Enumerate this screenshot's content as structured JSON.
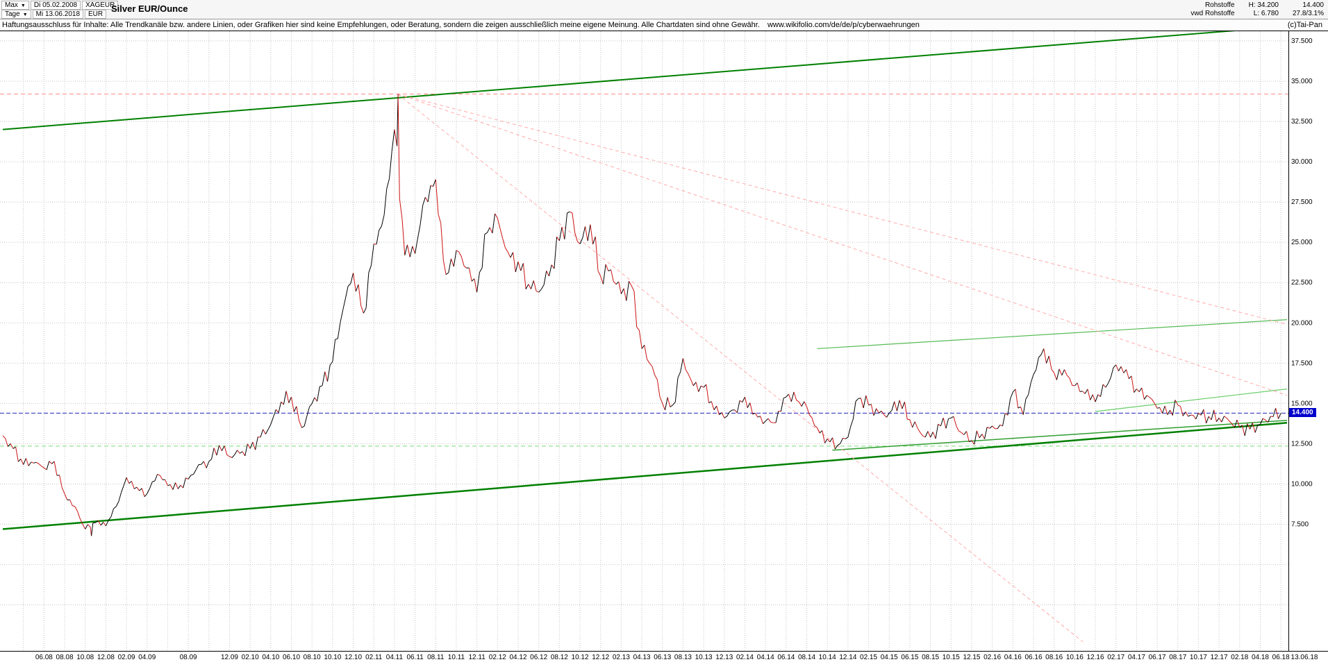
{
  "header": {
    "range_label": "Max",
    "start_date": "Di 05.02.2008",
    "symbol": "XAGEUR",
    "period_label": "Tage",
    "end_date": "Mi 13.06.2018",
    "currency": "EUR",
    "title": "Silver EUR/Ounce",
    "right": {
      "row1_label": "Rohstoffe",
      "row1_high": "H: 34.200",
      "row1_price": "14.400",
      "row2_label": "vwd Rohstoffe",
      "row2_low": "L: 6.780",
      "row2_change": "27.8/3.1%",
      "copyright": "(c)Tai-Pan"
    }
  },
  "disclaimer": {
    "text": "Haftungsausschluss für Inhalte: Alle Trendkanäle bzw. andere Linien, oder Grafiken hier sind keine Empfehlungen, oder Beratung, sondern die zeigen ausschließlich meine eigene Meinung. Alle Chartdaten sind ohne Gewähr.",
    "link": "www.wikifolio.com/de/de/p/cyberwaehrungen"
  },
  "chart_data": {
    "type": "candlestick",
    "title": "Silver EUR/Ounce",
    "instrument": "XAGEUR",
    "currency": "EUR",
    "period_high": 34.2,
    "period_low": 6.78,
    "last_price": 14.4,
    "last_price_label": "14.400",
    "x_range": [
      "2008-02",
      "2018-06-13"
    ],
    "x_end_label": "13.06.18",
    "ylim": [
      0,
      38.1
    ],
    "grid": true,
    "monthly": {
      "start": "2008-02",
      "closes": [
        13.0,
        12.2,
        11.2,
        11.3,
        11.0,
        11.4,
        9.4,
        8.6,
        7.2,
        7.6,
        7.4,
        8.6,
        10.4,
        9.8,
        9.4,
        10.6,
        9.9,
        9.7,
        10.3,
        11.2,
        11.4,
        12.4,
        11.7,
        11.9,
        12.2,
        12.9,
        13.7,
        15.1,
        15.4,
        13.5,
        15.0,
        16.1,
        17.6,
        20.8,
        23.1,
        20.6,
        24.9,
        26.7,
        32.0,
        24.2,
        24.3,
        27.8,
        28.9,
        23.0,
        24.5,
        23.4,
        21.9,
        25.6,
        26.5,
        24.4,
        23.8,
        22.4,
        21.9,
        22.9,
        25.1,
        26.9,
        24.9,
        26.1,
        22.9,
        23.3,
        21.8,
        22.3,
        18.4,
        17.3,
        15.0,
        14.9,
        17.8,
        16.1,
        16.0,
        14.6,
        14.1,
        14.6,
        15.4,
        14.4,
        13.9,
        13.8,
        15.4,
        15.2,
        14.8,
        13.5,
        12.8,
        12.4,
        12.9,
        15.3,
        14.9,
        14.4,
        14.4,
        15.2,
        14.0,
        13.2,
        12.9,
        13.6,
        14.1,
        13.2,
        12.7,
        13.1,
        13.6,
        13.6,
        15.7,
        14.3,
        16.8,
        18.4,
        16.9,
        17.1,
        16.1,
        15.6,
        15.1,
        16.0,
        17.4,
        17.1,
        15.9,
        15.5,
        14.7,
        14.3,
        14.9,
        14.2,
        14.4,
        14.2,
        14.1,
        13.9,
        13.5,
        13.4,
        13.7,
        14.2,
        14.4
      ]
    },
    "spikes": [
      [
        38.35,
        34.2
      ],
      [
        8.6,
        6.78
      ]
    ],
    "y_ticks": [
      [
        37.5,
        "37.500"
      ],
      [
        35,
        "35.000"
      ],
      [
        32.5,
        "32.500"
      ],
      [
        30,
        "30.000"
      ],
      [
        27.5,
        "27.500"
      ],
      [
        25,
        "25.000"
      ],
      [
        22.5,
        "22.500"
      ],
      [
        20,
        "20.000"
      ],
      [
        17.5,
        "17.500"
      ],
      [
        15,
        "15.000"
      ],
      [
        12.5,
        "12.500"
      ],
      [
        10,
        "10.000"
      ],
      [
        7.5,
        "7.500"
      ]
    ],
    "x_ticks": [
      [
        4,
        "06.08"
      ],
      [
        6,
        "08.08"
      ],
      [
        8,
        "10.08"
      ],
      [
        10,
        "12.08"
      ],
      [
        12,
        "02.09"
      ],
      [
        14,
        "04.09"
      ],
      [
        18,
        "08.09"
      ],
      [
        22,
        "12.09"
      ],
      [
        24,
        "02.10"
      ],
      [
        26,
        "04.10"
      ],
      [
        28,
        "06.10"
      ],
      [
        30,
        "08.10"
      ],
      [
        32,
        "10.10"
      ],
      [
        34,
        "12.10"
      ],
      [
        36,
        "02.11"
      ],
      [
        38,
        "04.11"
      ],
      [
        40,
        "06.11"
      ],
      [
        42,
        "08.11"
      ],
      [
        44,
        "10.11"
      ],
      [
        46,
        "12.11"
      ],
      [
        48,
        "02.12"
      ],
      [
        50,
        "04.12"
      ],
      [
        52,
        "06.12"
      ],
      [
        54,
        "08.12"
      ],
      [
        56,
        "10.12"
      ],
      [
        58,
        "12.12"
      ],
      [
        60,
        "02.13"
      ],
      [
        62,
        "04.13"
      ],
      [
        64,
        "06.13"
      ],
      [
        66,
        "08.13"
      ],
      [
        68,
        "10.13"
      ],
      [
        70,
        "12.13"
      ],
      [
        72,
        "02.14"
      ],
      [
        74,
        "04.14"
      ],
      [
        76,
        "06.14"
      ],
      [
        78,
        "08.14"
      ],
      [
        80,
        "10.14"
      ],
      [
        82,
        "12.14"
      ],
      [
        84,
        "02.15"
      ],
      [
        86,
        "04.15"
      ],
      [
        88,
        "06.15"
      ],
      [
        90,
        "08.15"
      ],
      [
        92,
        "10.15"
      ],
      [
        94,
        "12.15"
      ],
      [
        96,
        "02.16"
      ],
      [
        98,
        "04.16"
      ],
      [
        100,
        "06.16"
      ],
      [
        102,
        "08.16"
      ],
      [
        104,
        "10.16"
      ],
      [
        106,
        "12.16"
      ],
      [
        108,
        "02.17"
      ],
      [
        110,
        "04.17"
      ],
      [
        112,
        "06.17"
      ],
      [
        114,
        "08.17"
      ],
      [
        116,
        "10.17"
      ],
      [
        118,
        "12.17"
      ],
      [
        120,
        "02.18"
      ],
      [
        122,
        "04.18"
      ],
      [
        124,
        "06.18"
      ]
    ],
    "h_lines": [
      {
        "name": "all-time-high-resistance",
        "p": 34.2,
        "color": "#ff8888",
        "dash": "6 4"
      },
      {
        "name": "last-price-line",
        "p": 14.4,
        "color": "#2222bb",
        "dash": "6 3"
      },
      {
        "name": "horizontal-support",
        "p": 12.35,
        "color": "#77dd77",
        "dash": "6 4"
      }
    ],
    "overlay_lines": [
      {
        "name": "upper-trend-channel",
        "m1": 0,
        "p1": 32.0,
        "m2": 124.6,
        "p2": 38.4,
        "color": "#008000",
        "w": 2
      },
      {
        "name": "lower-trend-channel",
        "m1": 0,
        "p1": 7.2,
        "m2": 124.6,
        "p2": 13.8,
        "color": "#008000",
        "w": 2.5
      },
      {
        "name": "support-line-2014",
        "m1": 80.5,
        "p1": 12.1,
        "m2": 124.6,
        "p2": 13.95,
        "color": "#2e9e2e",
        "w": 1.5
      },
      {
        "name": "resistance-line-2014",
        "m1": 79,
        "p1": 18.4,
        "m2": 124.6,
        "p2": 20.2,
        "color": "#55bb55",
        "w": 1.2
      },
      {
        "name": "wedge-upper-line",
        "m1": 106,
        "p1": 14.5,
        "m2": 124.6,
        "p2": 15.9,
        "color": "#66cc66",
        "w": 1.2
      },
      {
        "name": "fan-line-1",
        "m1": 38.3,
        "p1": 34.2,
        "m2": 124.6,
        "p2": 19.9,
        "color": "#ffaaaa",
        "w": 1,
        "dash": "5 4"
      },
      {
        "name": "fan-line-2",
        "m1": 38.3,
        "p1": 34.2,
        "m2": 124.6,
        "p2": 15.5,
        "color": "#ffaaaa",
        "w": 1,
        "dash": "5 4"
      },
      {
        "name": "fan-line-3",
        "m1": 38.3,
        "p1": 34.2,
        "m2": 104.8,
        "p2": 0.2,
        "color": "#ffaaaa",
        "w": 1,
        "dash": "5 4"
      }
    ],
    "colors": {
      "up": "#000000",
      "down": "#cc1111",
      "grid": "#c4c4c4",
      "axis": "#000000",
      "last_price_bg": "#0000cc"
    }
  }
}
